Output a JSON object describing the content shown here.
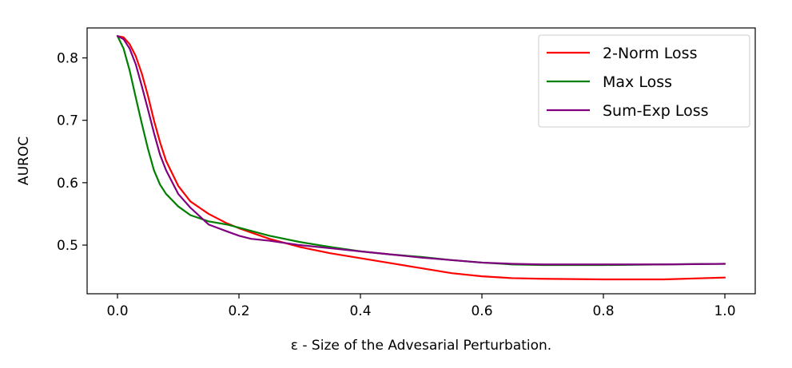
{
  "chart_data": {
    "type": "line",
    "title": "",
    "xlabel": "ε - Size of the Advesarial Perturbation.",
    "ylabel": "AUROC",
    "xlim": [
      -0.05,
      1.05
    ],
    "ylim": [
      0.422,
      0.848
    ],
    "x_ticks": [
      0.0,
      0.2,
      0.4,
      0.6,
      0.8,
      1.0
    ],
    "x_tick_labels": [
      "0.0",
      "0.2",
      "0.4",
      "0.6",
      "0.8",
      "1.0"
    ],
    "y_ticks": [
      0.5,
      0.6,
      0.7,
      0.8
    ],
    "y_tick_labels": [
      "0.5",
      "0.6",
      "0.7",
      "0.8"
    ],
    "grid": false,
    "legend_position": "top-right",
    "series": [
      {
        "name": "2-Norm Loss",
        "color": "#ff0000",
        "x": [
          0.0,
          0.01,
          0.02,
          0.03,
          0.04,
          0.05,
          0.06,
          0.07,
          0.08,
          0.1,
          0.12,
          0.15,
          0.18,
          0.2,
          0.25,
          0.3,
          0.35,
          0.4,
          0.45,
          0.5,
          0.55,
          0.6,
          0.65,
          0.7,
          0.8,
          0.9,
          1.0
        ],
        "y": [
          0.835,
          0.833,
          0.822,
          0.803,
          0.775,
          0.74,
          0.7,
          0.665,
          0.635,
          0.595,
          0.57,
          0.55,
          0.535,
          0.527,
          0.51,
          0.497,
          0.487,
          0.479,
          0.471,
          0.463,
          0.455,
          0.45,
          0.447,
          0.446,
          0.445,
          0.445,
          0.448
        ]
      },
      {
        "name": "Max Loss",
        "color": "#008000",
        "x": [
          0.0,
          0.01,
          0.02,
          0.03,
          0.04,
          0.05,
          0.06,
          0.07,
          0.08,
          0.1,
          0.12,
          0.15,
          0.18,
          0.2,
          0.25,
          0.3,
          0.35,
          0.4,
          0.45,
          0.5,
          0.55,
          0.6,
          0.65,
          0.7,
          0.8,
          0.9,
          1.0
        ],
        "y": [
          0.835,
          0.815,
          0.78,
          0.737,
          0.695,
          0.655,
          0.62,
          0.597,
          0.582,
          0.562,
          0.548,
          0.538,
          0.533,
          0.528,
          0.515,
          0.505,
          0.497,
          0.49,
          0.485,
          0.481,
          0.476,
          0.472,
          0.469,
          0.468,
          0.468,
          0.469,
          0.47
        ]
      },
      {
        "name": "Sum-Exp Loss",
        "color": "#800080",
        "x": [
          0.0,
          0.01,
          0.02,
          0.03,
          0.04,
          0.05,
          0.06,
          0.07,
          0.08,
          0.1,
          0.12,
          0.15,
          0.18,
          0.2,
          0.22,
          0.25,
          0.3,
          0.35,
          0.4,
          0.45,
          0.5,
          0.55,
          0.6,
          0.65,
          0.7,
          0.8,
          0.9,
          1.0
        ],
        "y": [
          0.835,
          0.83,
          0.815,
          0.79,
          0.755,
          0.718,
          0.68,
          0.645,
          0.62,
          0.582,
          0.56,
          0.533,
          0.522,
          0.515,
          0.51,
          0.507,
          0.5,
          0.495,
          0.49,
          0.485,
          0.48,
          0.476,
          0.472,
          0.47,
          0.469,
          0.469,
          0.469,
          0.47
        ]
      }
    ]
  }
}
